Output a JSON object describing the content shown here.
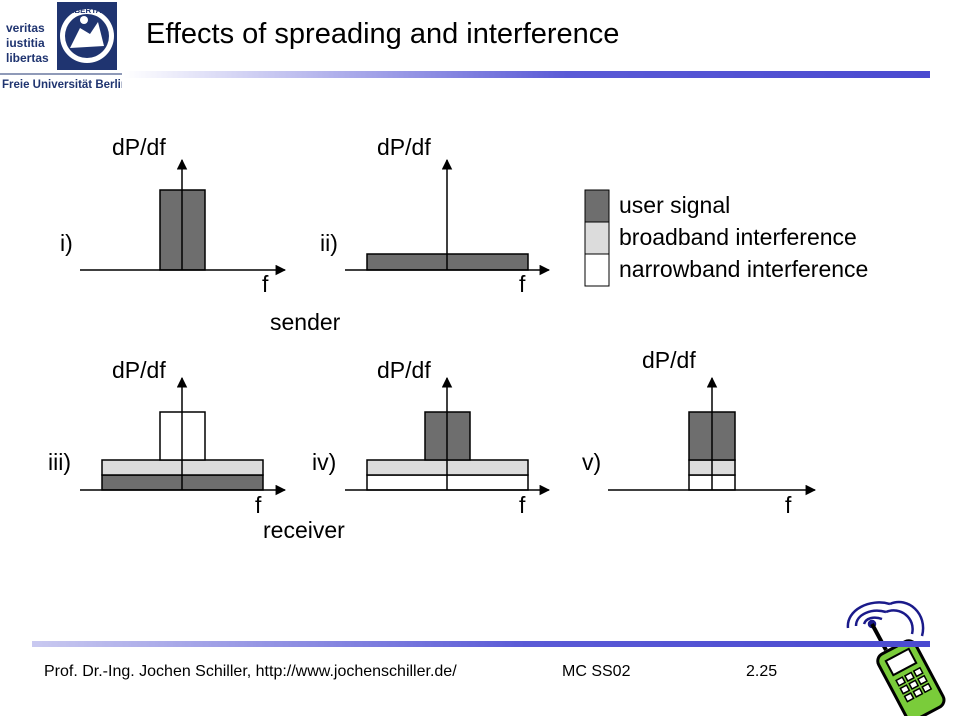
{
  "header": {
    "title": "Effects of spreading and interference",
    "logo_lines": [
      "veritas",
      "iustitia",
      "libertas"
    ],
    "logo_text": "Freie Universität Berlin",
    "logo_seal": "LIBERTAS"
  },
  "diagram": {
    "axis_y_label": "dP/df",
    "axis_x_label": "f",
    "panels": [
      {
        "id": "i",
        "label": "i)"
      },
      {
        "id": "ii",
        "label": "ii)"
      },
      {
        "id": "iii",
        "label": "iii)"
      },
      {
        "id": "iv",
        "label": "iv)"
      },
      {
        "id": "v",
        "label": "v)"
      }
    ],
    "group_labels": {
      "sender": "sender",
      "receiver": "receiver"
    },
    "legend": [
      {
        "label": "user signal",
        "color": "#6e6e6e"
      },
      {
        "label": "broadband interference",
        "color": "#dcdcdc"
      },
      {
        "label": "narrowband interference",
        "color": "#ffffff"
      }
    ]
  },
  "footer": {
    "author": "Prof. Dr.-Ing. Jochen Schiller, http://www.jochenschiller.de/",
    "course": "MC SS02",
    "page": "2.25"
  },
  "colors": {
    "accent": "#4a4ad0",
    "user_signal": "#6e6e6e",
    "broadband": "#dcdcdc",
    "narrowband": "#ffffff"
  },
  "decoration": {
    "phone_icon": "mobile-phone-clipart-icon"
  }
}
